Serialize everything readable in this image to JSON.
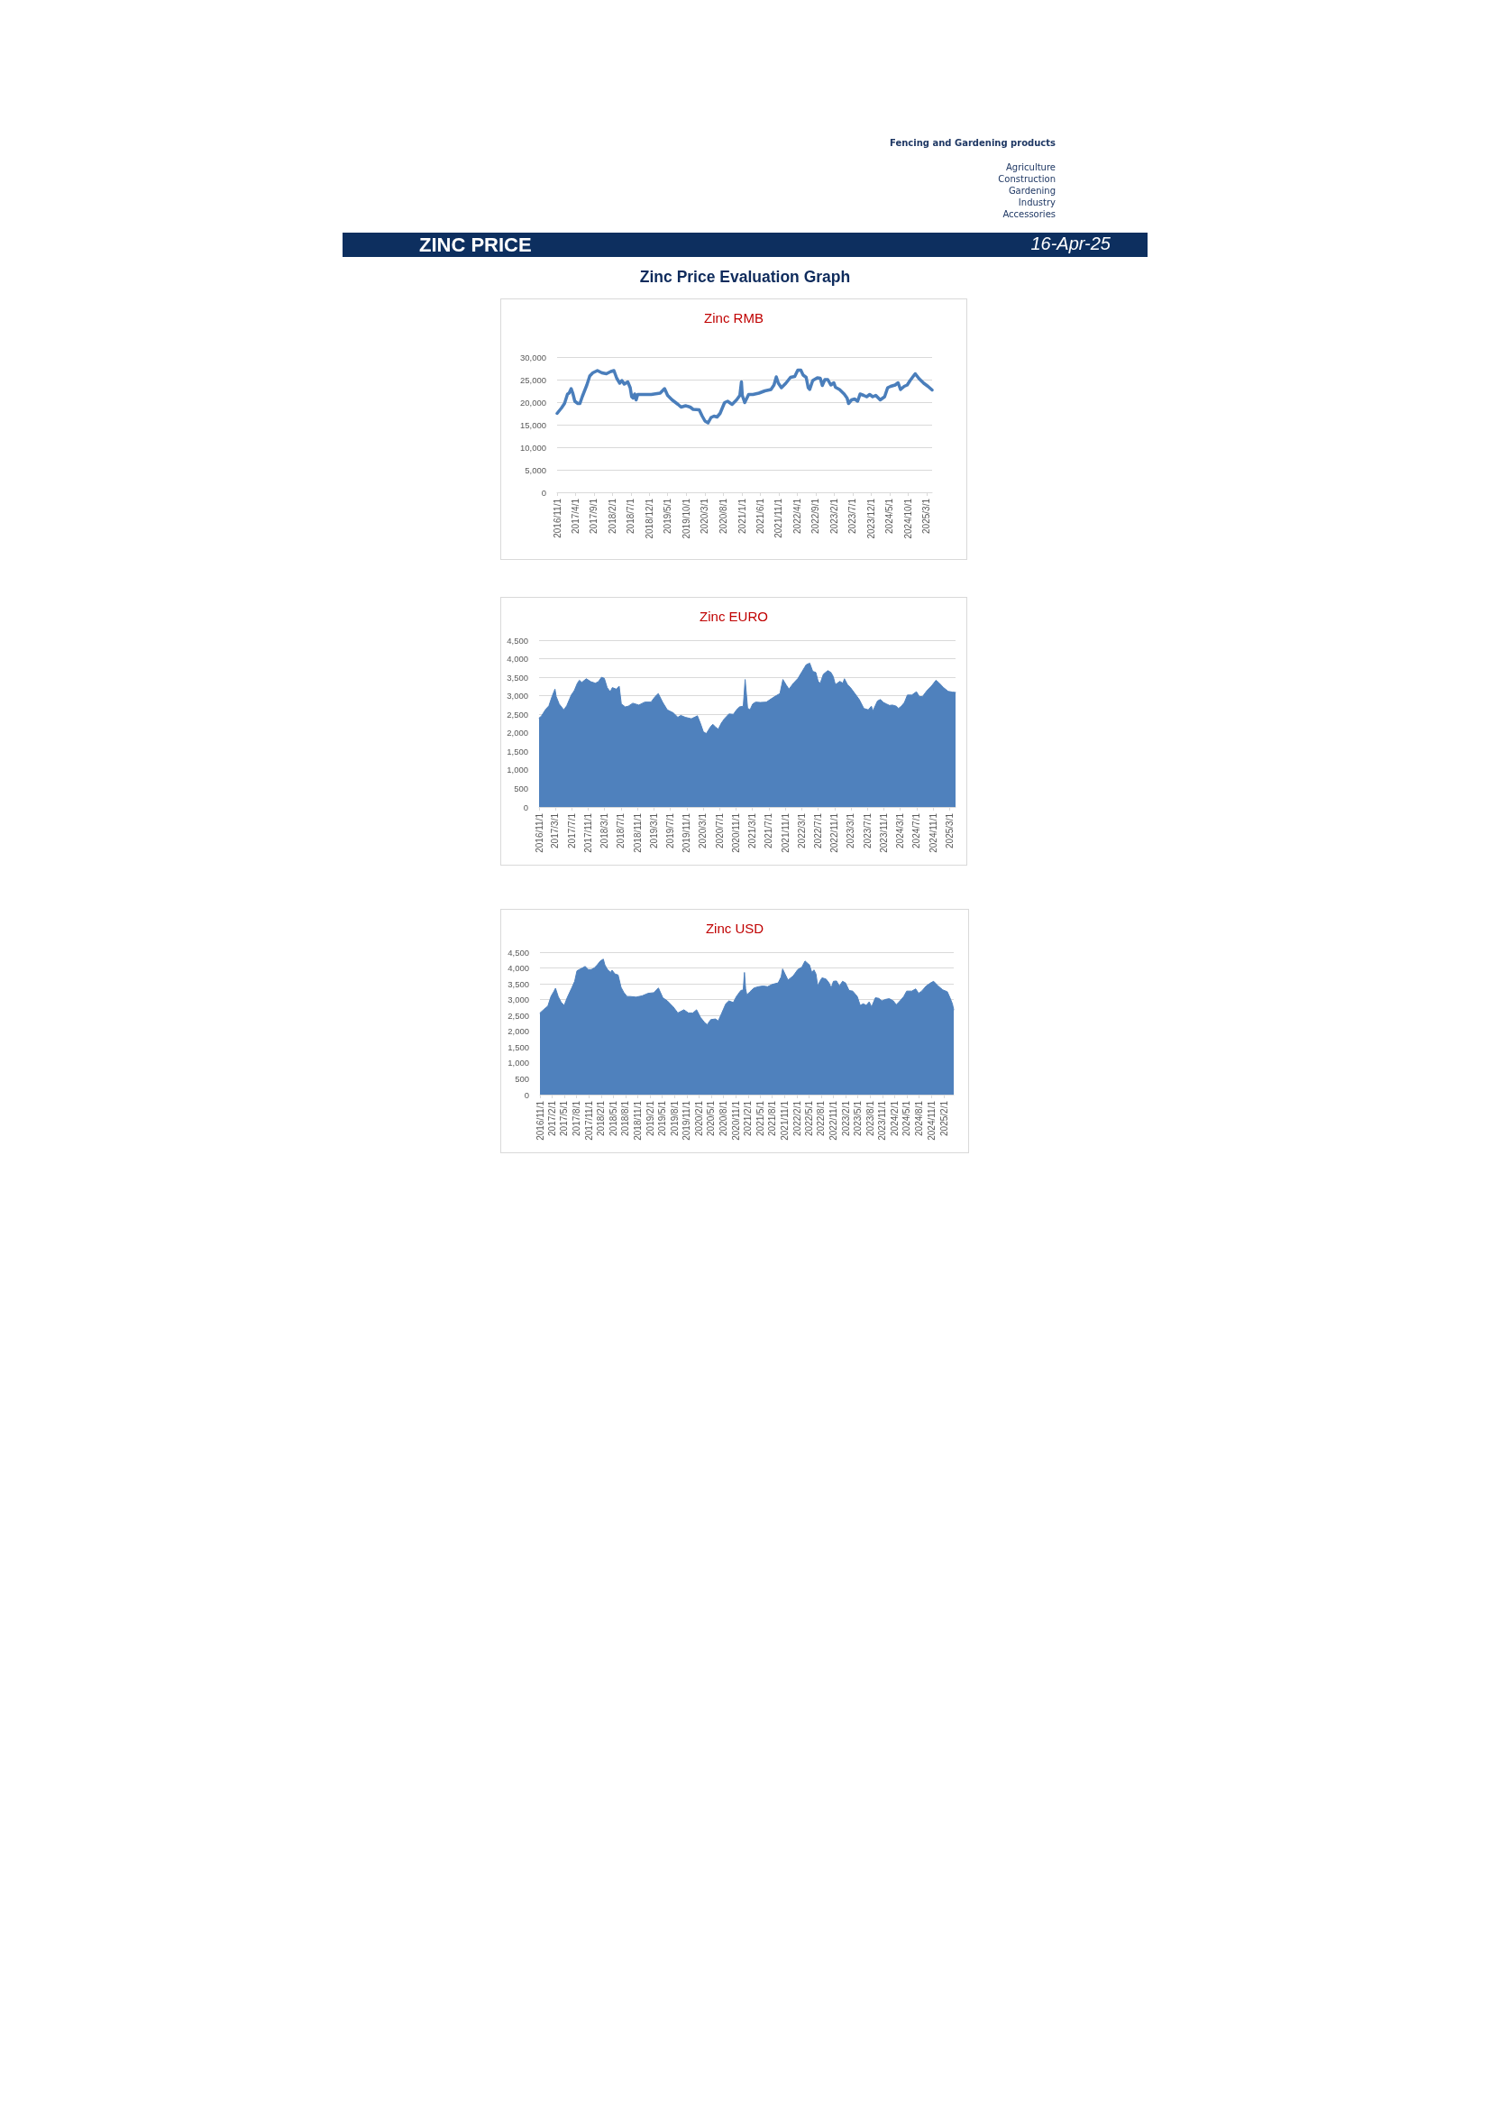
{
  "chart_data": [
    {
      "type": "other",
      "title": "ZINC PRICE",
      "subtitle": "Zinc Price Evaluation Graph",
      "annotations": [
        "16-Apr-25",
        "Fencing and Gardening products",
        "Agriculture",
        "Construction",
        "Gardening",
        "Industry",
        "Accessories"
      ]
    },
    {
      "type": "line",
      "title": "Zinc RMB",
      "color": "#4a7ebb",
      "marker": "none",
      "grid": "y",
      "xlim": [
        "2016-11-01",
        "2025-04-16"
      ],
      "xticks": [
        {
          "value": "2016-11-01",
          "label": "2016/11/1"
        },
        {
          "value": "2017-04-01",
          "label": "2017/4/1"
        },
        {
          "value": "2017-09-01",
          "label": "2017/9/1"
        },
        {
          "value": "2018-02-01",
          "label": "2018/2/1"
        },
        {
          "value": "2018-07-01",
          "label": "2018/7/1"
        },
        {
          "value": "2018-12-01",
          "label": "2018/12/1"
        },
        {
          "value": "2019-05-01",
          "label": "2019/5/1"
        },
        {
          "value": "2019-10-01",
          "label": "2019/10/1"
        },
        {
          "value": "2020-03-01",
          "label": "2020/3/1"
        },
        {
          "value": "2020-08-01",
          "label": "2020/8/1"
        },
        {
          "value": "2021-01-01",
          "label": "2021/1/1"
        },
        {
          "value": "2021-06-01",
          "label": "2021/6/1"
        },
        {
          "value": "2021-11-01",
          "label": "2021/11/1"
        },
        {
          "value": "2022-04-01",
          "label": "2022/4/1"
        },
        {
          "value": "2022-09-01",
          "label": "2022/9/1"
        },
        {
          "value": "2023-02-01",
          "label": "2023/2/1"
        },
        {
          "value": "2023-07-01",
          "label": "2023/7/1"
        },
        {
          "value": "2023-12-01",
          "label": "2023/12/1"
        },
        {
          "value": "2024-05-01",
          "label": "2024/5/1"
        },
        {
          "value": "2024-10-01",
          "label": "2024/10/1"
        },
        {
          "value": "2025-03-01",
          "label": "2025/3/1"
        }
      ],
      "ylim": [
        0,
        30000
      ],
      "yticks": [
        {
          "value": 0,
          "label": "0"
        },
        {
          "value": 5000,
          "label": "5,000"
        },
        {
          "value": 10000,
          "label": "10,000"
        },
        {
          "value": 15000,
          "label": "15,000"
        },
        {
          "value": 20000,
          "label": "20,000"
        },
        {
          "value": 25000,
          "label": "25,000"
        },
        {
          "value": 30000,
          "label": "30,000"
        }
      ],
      "x": [
        "2016-11-01",
        "2016-12-07",
        "2017-01-01",
        "2017-01-26",
        "2017-02-08",
        "2017-02-25",
        "2017-03-10",
        "2017-03-27",
        "2017-04-21",
        "2017-05-08",
        "2017-05-27",
        "2017-07-04",
        "2017-07-28",
        "2017-08-22",
        "2017-09-29",
        "2017-11-05",
        "2017-12-12",
        "2018-01-18",
        "2018-02-12",
        "2018-03-07",
        "2018-04-01",
        "2018-04-18",
        "2018-05-08",
        "2018-06-06",
        "2018-06-26",
        "2018-07-08",
        "2018-07-20",
        "2018-08-02",
        "2018-08-14",
        "2018-08-27",
        "2018-12-16",
        "2019-02-28",
        "2019-04-05",
        "2019-04-30",
        "2019-06-06",
        "2019-07-25",
        "2019-08-19",
        "2019-09-25",
        "2019-11-02",
        "2019-11-26",
        "2020-01-15",
        "2020-02-09",
        "2020-03-03",
        "2020-03-28",
        "2020-04-22",
        "2020-05-16",
        "2020-06-10",
        "2020-07-05",
        "2020-08-11",
        "2020-09-05",
        "2020-10-12",
        "2020-11-18",
        "2020-12-15",
        "2020-12-28",
        "2021-01-04",
        "2021-01-24",
        "2021-02-25",
        "2021-04-02",
        "2021-05-21",
        "2021-07-09",
        "2021-08-28",
        "2021-09-22",
        "2021-10-11",
        "2021-10-28",
        "2021-11-22",
        "2021-12-29",
        "2022-02-05",
        "2022-03-12",
        "2022-04-06",
        "2022-05-01",
        "2022-05-20",
        "2022-06-14",
        "2022-07-01",
        "2022-07-13",
        "2022-08-07",
        "2022-09-14",
        "2022-10-08",
        "2022-10-25",
        "2022-11-15",
        "2022-12-09",
        "2023-01-03",
        "2023-01-28",
        "2023-02-10",
        "2023-03-16",
        "2023-04-23",
        "2023-05-17",
        "2023-05-29",
        "2023-06-23",
        "2023-07-18",
        "2023-08-12",
        "2023-09-01",
        "2023-10-01",
        "2023-10-25",
        "2023-11-19",
        "2023-12-14",
        "2024-01-08",
        "2024-02-14",
        "2024-03-21",
        "2024-04-15",
        "2024-05-09",
        "2024-06-16",
        "2024-07-10",
        "2024-07-30",
        "2024-08-29",
        "2024-09-23",
        "2024-10-17",
        "2024-11-11",
        "2024-11-28",
        "2024-12-30",
        "2025-02-06",
        "2025-03-13",
        "2025-04-16"
      ],
      "values": [
        17500,
        18700,
        19700,
        21800,
        22000,
        23000,
        22000,
        20200,
        19700,
        19700,
        21200,
        23800,
        25800,
        26500,
        27000,
        26500,
        26300,
        26800,
        27000,
        25300,
        24200,
        24800,
        24000,
        24500,
        23200,
        21200,
        20900,
        21800,
        20500,
        21700,
        21700,
        22000,
        23000,
        21500,
        20500,
        19500,
        18900,
        19200,
        18900,
        18400,
        18300,
        16900,
        15800,
        15400,
        16600,
        16900,
        16700,
        17500,
        19900,
        20200,
        19500,
        20500,
        21500,
        24500,
        21500,
        19900,
        21700,
        21700,
        22000,
        22500,
        22800,
        23800,
        25600,
        24200,
        23200,
        24200,
        25500,
        25700,
        27100,
        27100,
        26000,
        25500,
        23200,
        22800,
        24800,
        25400,
        25300,
        23700,
        25000,
        25000,
        23800,
        24300,
        23300,
        22800,
        21800,
        20900,
        19700,
        20500,
        20700,
        20200,
        21800,
        21500,
        21200,
        21700,
        21200,
        21500,
        20500,
        21200,
        23200,
        23500,
        23800,
        24300,
        22800,
        23500,
        23800,
        24800,
        25700,
        26300,
        25200,
        24200,
        23500,
        22700
      ]
    },
    {
      "type": "area",
      "title": "Zinc EURO",
      "color": "#4f81bd",
      "marker": "none",
      "grid": "y",
      "xlim": [
        "2016-11-01",
        "2025-04-16"
      ],
      "xticks": [
        {
          "value": "2016-11-01",
          "label": "2016/11/1"
        },
        {
          "value": "2017-03-01",
          "label": "2017/3/1"
        },
        {
          "value": "2017-07-01",
          "label": "2017/7/1"
        },
        {
          "value": "2017-11-01",
          "label": "2017/11/1"
        },
        {
          "value": "2018-03-01",
          "label": "2018/3/1"
        },
        {
          "value": "2018-07-01",
          "label": "2018/7/1"
        },
        {
          "value": "2018-11-01",
          "label": "2018/11/1"
        },
        {
          "value": "2019-03-01",
          "label": "2019/3/1"
        },
        {
          "value": "2019-07-01",
          "label": "2019/7/1"
        },
        {
          "value": "2019-11-01",
          "label": "2019/11/1"
        },
        {
          "value": "2020-03-01",
          "label": "2020/3/1"
        },
        {
          "value": "2020-07-01",
          "label": "2020/7/1"
        },
        {
          "value": "2020-11-01",
          "label": "2020/11/1"
        },
        {
          "value": "2021-03-01",
          "label": "2021/3/1"
        },
        {
          "value": "2021-07-01",
          "label": "2021/7/1"
        },
        {
          "value": "2021-11-01",
          "label": "2021/11/1"
        },
        {
          "value": "2022-03-01",
          "label": "2022/3/1"
        },
        {
          "value": "2022-07-01",
          "label": "2022/7/1"
        },
        {
          "value": "2022-11-01",
          "label": "2022/11/1"
        },
        {
          "value": "2023-03-01",
          "label": "2023/3/1"
        },
        {
          "value": "2023-07-01",
          "label": "2023/7/1"
        },
        {
          "value": "2023-11-01",
          "label": "2023/11/1"
        },
        {
          "value": "2024-03-01",
          "label": "2024/3/1"
        },
        {
          "value": "2024-07-01",
          "label": "2024/7/1"
        },
        {
          "value": "2024-11-01",
          "label": "2024/11/1"
        },
        {
          "value": "2025-03-01",
          "label": "2025/3/1"
        }
      ],
      "ylim": [
        0,
        4500
      ],
      "yticks": [
        {
          "value": 0,
          "label": "0"
        },
        {
          "value": 500,
          "label": "500"
        },
        {
          "value": 1000,
          "label": "1,000"
        },
        {
          "value": 1500,
          "label": "1,500"
        },
        {
          "value": 2000,
          "label": "2,000"
        },
        {
          "value": 2500,
          "label": "2,500"
        },
        {
          "value": 3000,
          "label": "3,000"
        },
        {
          "value": 3500,
          "label": "3,500"
        },
        {
          "value": 4000,
          "label": "4,000"
        },
        {
          "value": 4500,
          "label": "4,500"
        }
      ],
      "x": [
        "2016-11-01",
        "2016-11-18",
        "2016-12-21",
        "2017-01-13",
        "2017-02-05",
        "2017-02-27",
        "2017-03-08",
        "2017-03-30",
        "2017-05-03",
        "2017-05-25",
        "2017-06-28",
        "2017-07-20",
        "2017-08-12",
        "2017-08-27",
        "2017-09-14",
        "2017-10-17",
        "2017-11-20",
        "2017-12-23",
        "2018-01-15",
        "2018-02-07",
        "2018-02-28",
        "2018-03-21",
        "2018-04-13",
        "2018-04-28",
        "2018-05-27",
        "2018-06-18",
        "2018-07-04",
        "2018-08-02",
        "2018-08-25",
        "2018-09-27",
        "2018-11-11",
        "2018-12-25",
        "2019-02-09",
        "2019-03-12",
        "2019-04-04",
        "2019-05-07",
        "2019-06-10",
        "2019-07-24",
        "2019-08-27",
        "2019-09-18",
        "2019-10-21",
        "2019-12-05",
        "2020-01-03",
        "2020-01-19",
        "2020-02-10",
        "2020-03-03",
        "2020-03-25",
        "2020-04-28",
        "2020-05-13",
        "2020-05-31",
        "2020-06-22",
        "2020-07-14",
        "2020-08-06",
        "2020-09-09",
        "2020-10-12",
        "2020-11-04",
        "2020-11-26",
        "2020-12-24",
        "2021-01-07",
        "2021-01-16",
        "2021-01-25",
        "2021-02-12",
        "2021-03-04",
        "2021-03-26",
        "2021-04-29",
        "2021-06-13",
        "2021-07-16",
        "2021-08-19",
        "2021-09-22",
        "2021-10-14",
        "2021-11-06",
        "2021-11-28",
        "2021-12-31",
        "2022-02-03",
        "2022-03-06",
        "2022-04-05",
        "2022-05-01",
        "2022-05-23",
        "2022-06-15",
        "2022-07-03",
        "2022-07-18",
        "2022-08-10",
        "2022-09-12",
        "2022-10-05",
        "2022-10-22",
        "2022-11-07",
        "2022-12-10",
        "2023-01-02",
        "2023-01-13",
        "2023-02-05",
        "2023-02-27",
        "2023-03-30",
        "2023-05-03",
        "2023-06-06",
        "2023-07-09",
        "2023-08-01",
        "2023-08-12",
        "2023-09-15",
        "2023-10-07",
        "2023-10-29",
        "2023-11-21",
        "2023-12-13",
        "2024-01-04",
        "2024-02-02",
        "2024-02-18",
        "2024-03-10",
        "2024-04-02",
        "2024-04-24",
        "2024-05-27",
        "2024-06-30",
        "2024-07-22",
        "2024-08-14",
        "2024-09-16",
        "2024-10-19",
        "2024-11-22",
        "2024-12-14",
        "2025-01-17",
        "2025-02-20",
        "2025-03-23",
        "2025-04-16"
      ],
      "values": [
        2400,
        2450,
        2640,
        2730,
        2980,
        3180,
        2980,
        2780,
        2620,
        2730,
        3020,
        3140,
        3340,
        3420,
        3360,
        3460,
        3380,
        3340,
        3380,
        3500,
        3470,
        3220,
        3110,
        3220,
        3180,
        3260,
        2780,
        2700,
        2720,
        2800,
        2750,
        2830,
        2830,
        2980,
        3060,
        2820,
        2620,
        2540,
        2420,
        2470,
        2420,
        2380,
        2430,
        2460,
        2260,
        2030,
        1980,
        2180,
        2230,
        2160,
        2100,
        2260,
        2380,
        2510,
        2500,
        2620,
        2700,
        2720,
        3440,
        3060,
        2670,
        2620,
        2780,
        2830,
        2820,
        2830,
        2910,
        2990,
        3060,
        3440,
        3300,
        3180,
        3340,
        3470,
        3660,
        3840,
        3880,
        3660,
        3630,
        3380,
        3340,
        3580,
        3680,
        3630,
        3520,
        3300,
        3390,
        3340,
        3460,
        3300,
        3220,
        3070,
        2900,
        2660,
        2620,
        2720,
        2590,
        2860,
        2900,
        2820,
        2780,
        2740,
        2750,
        2720,
        2660,
        2720,
        2820,
        3020,
        3020,
        3110,
        2980,
        2980,
        3140,
        3260,
        3420,
        3350,
        3220,
        3120,
        3100,
        3090
      ]
    },
    {
      "type": "area",
      "title": "Zinc USD",
      "color": "#4f81bd",
      "marker": "none",
      "grid": "y",
      "xlim": [
        "2016-11-01",
        "2025-04-16"
      ],
      "xticks": [
        {
          "value": "2016-11-01",
          "label": "2016/11/1"
        },
        {
          "value": "2017-02-01",
          "label": "2017/2/1"
        },
        {
          "value": "2017-05-01",
          "label": "2017/5/1"
        },
        {
          "value": "2017-08-01",
          "label": "2017/8/1"
        },
        {
          "value": "2017-11-01",
          "label": "2017/11/1"
        },
        {
          "value": "2018-02-01",
          "label": "2018/2/1"
        },
        {
          "value": "2018-05-01",
          "label": "2018/5/1"
        },
        {
          "value": "2018-08-01",
          "label": "2018/8/1"
        },
        {
          "value": "2018-11-01",
          "label": "2018/11/1"
        },
        {
          "value": "2019-02-01",
          "label": "2019/2/1"
        },
        {
          "value": "2019-05-01",
          "label": "2019/5/1"
        },
        {
          "value": "2019-08-01",
          "label": "2019/8/1"
        },
        {
          "value": "2019-11-01",
          "label": "2019/11/1"
        },
        {
          "value": "2020-02-01",
          "label": "2020/2/1"
        },
        {
          "value": "2020-05-01",
          "label": "2020/5/1"
        },
        {
          "value": "2020-08-01",
          "label": "2020/8/1"
        },
        {
          "value": "2020-11-01",
          "label": "2020/11/1"
        },
        {
          "value": "2021-02-01",
          "label": "2021/2/1"
        },
        {
          "value": "2021-05-01",
          "label": "2021/5/1"
        },
        {
          "value": "2021-08-01",
          "label": "2021/8/1"
        },
        {
          "value": "2021-11-01",
          "label": "2021/11/1"
        },
        {
          "value": "2022-02-01",
          "label": "2022/2/1"
        },
        {
          "value": "2022-05-01",
          "label": "2022/5/1"
        },
        {
          "value": "2022-08-01",
          "label": "2022/8/1"
        },
        {
          "value": "2022-11-01",
          "label": "2022/11/1"
        },
        {
          "value": "2023-02-01",
          "label": "2023/2/1"
        },
        {
          "value": "2023-05-01",
          "label": "2023/5/1"
        },
        {
          "value": "2023-08-01",
          "label": "2023/8/1"
        },
        {
          "value": "2023-11-01",
          "label": "2023/11/1"
        },
        {
          "value": "2024-02-01",
          "label": "2024/2/1"
        },
        {
          "value": "2024-05-01",
          "label": "2024/5/1"
        },
        {
          "value": "2024-08-01",
          "label": "2024/8/1"
        },
        {
          "value": "2024-11-01",
          "label": "2024/11/1"
        },
        {
          "value": "2025-02-01",
          "label": "2025/2/1"
        }
      ],
      "ylim": [
        0,
        4500
      ],
      "yticks": [
        {
          "value": 0,
          "label": "0"
        },
        {
          "value": 500,
          "label": "500"
        },
        {
          "value": 1000,
          "label": "1,000"
        },
        {
          "value": 1500,
          "label": "1,500"
        },
        {
          "value": 2000,
          "label": "2,000"
        },
        {
          "value": 2500,
          "label": "2,500"
        },
        {
          "value": 3000,
          "label": "3,000"
        },
        {
          "value": 3500,
          "label": "3,500"
        },
        {
          "value": 4000,
          "label": "4,000"
        },
        {
          "value": 4500,
          "label": "4,500"
        }
      ],
      "x": [
        "2016-11-01",
        "2016-11-27",
        "2016-12-30",
        "2017-01-22",
        "2017-02-14",
        "2017-02-25",
        "2017-03-17",
        "2017-04-09",
        "2017-05-01",
        "2017-05-23",
        "2017-06-26",
        "2017-07-18",
        "2017-08-04",
        "2017-08-21",
        "2017-09-13",
        "2017-10-05",
        "2017-10-27",
        "2017-11-19",
        "2017-12-11",
        "2018-01-03",
        "2018-01-25",
        "2018-02-17",
        "2018-02-28",
        "2018-03-20",
        "2018-04-12",
        "2018-04-23",
        "2018-05-15",
        "2018-06-07",
        "2018-06-29",
        "2018-07-21",
        "2018-08-13",
        "2018-09-05",
        "2018-10-19",
        "2018-12-03",
        "2019-01-17",
        "2019-03-01",
        "2019-04-04",
        "2019-05-07",
        "2019-06-10",
        "2019-07-24",
        "2019-08-27",
        "2019-10-11",
        "2019-11-14",
        "2019-12-17",
        "2020-01-14",
        "2020-02-12",
        "2020-03-15",
        "2020-04-02",
        "2020-04-29",
        "2020-06-02",
        "2020-06-24",
        "2020-07-16",
        "2020-08-19",
        "2020-09-11",
        "2020-10-14",
        "2020-11-06",
        "2020-12-09",
        "2020-12-27",
        "2021-01-05",
        "2021-01-14",
        "2021-01-23",
        "2021-02-15",
        "2021-03-18",
        "2021-04-21",
        "2021-05-24",
        "2021-06-27",
        "2021-07-30",
        "2021-09-14",
        "2021-10-06",
        "2021-10-17",
        "2021-11-04",
        "2021-11-26",
        "2022-01-04",
        "2022-02-07",
        "2022-03-10",
        "2022-04-02",
        "2022-04-24",
        "2022-05-05",
        "2022-05-23",
        "2022-06-08",
        "2022-06-23",
        "2022-07-06",
        "2022-07-22",
        "2022-08-07",
        "2022-09-06",
        "2022-09-28",
        "2022-10-15",
        "2022-10-31",
        "2022-11-23",
        "2022-12-15",
        "2023-01-07",
        "2023-01-29",
        "2023-02-25",
        "2023-03-24",
        "2023-04-27",
        "2023-05-19",
        "2023-06-11",
        "2023-07-03",
        "2023-07-25",
        "2023-08-12",
        "2023-09-09",
        "2023-10-05",
        "2023-10-27",
        "2023-11-26",
        "2023-12-22",
        "2024-01-21",
        "2024-02-12",
        "2024-03-05",
        "2024-04-08",
        "2024-04-30",
        "2024-06-07",
        "2024-07-06",
        "2024-07-28",
        "2024-08-20",
        "2024-09-22",
        "2024-10-26",
        "2024-11-17",
        "2024-12-21",
        "2025-01-24",
        "2025-02-27",
        "2025-03-19",
        "2025-04-06",
        "2025-04-16"
      ],
      "values": [
        2580,
        2680,
        2800,
        3100,
        3270,
        3360,
        3100,
        2910,
        2820,
        3060,
        3370,
        3580,
        3910,
        3950,
        4000,
        4050,
        3950,
        3950,
        4000,
        4100,
        4220,
        4280,
        4100,
        3950,
        3860,
        3930,
        3810,
        3780,
        3390,
        3220,
        3100,
        3100,
        3080,
        3120,
        3200,
        3220,
        3370,
        3060,
        2960,
        2770,
        2580,
        2680,
        2580,
        2580,
        2680,
        2440,
        2270,
        2210,
        2370,
        2390,
        2330,
        2540,
        2870,
        2960,
        2910,
        3100,
        3290,
        3310,
        3860,
        3340,
        3150,
        3250,
        3370,
        3410,
        3430,
        3410,
        3480,
        3530,
        3720,
        3970,
        3810,
        3620,
        3750,
        3950,
        4030,
        4220,
        4140,
        4100,
        3860,
        3940,
        3810,
        3430,
        3580,
        3690,
        3650,
        3530,
        3370,
        3580,
        3590,
        3430,
        3580,
        3530,
        3290,
        3270,
        3100,
        2820,
        2870,
        2820,
        2930,
        2770,
        3060,
        3040,
        2960,
        3010,
        3030,
        2960,
        2840,
        2930,
        3100,
        3270,
        3270,
        3340,
        3200,
        3270,
        3430,
        3530,
        3580,
        3430,
        3310,
        3250,
        3060,
        2870,
        2680
      ]
    }
  ]
}
